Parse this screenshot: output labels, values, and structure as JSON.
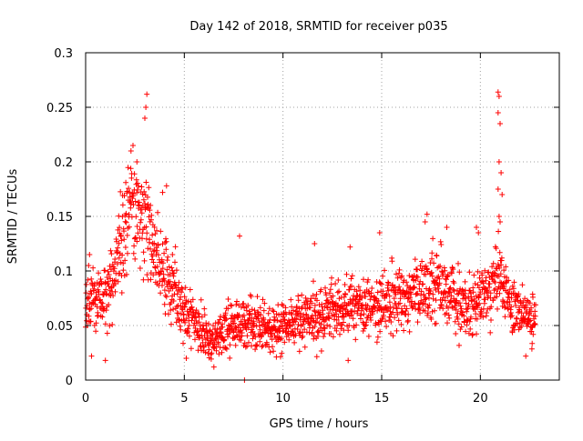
{
  "chart_data": {
    "type": "scatter",
    "title": "Day 142 of 2018, SRMTID for receiver p035",
    "xlabel": "GPS time / hours",
    "ylabel": "SRMTID / TECUs",
    "xlim": [
      0,
      24
    ],
    "ylim": [
      0,
      0.3
    ],
    "x_ticks": [
      0,
      5,
      10,
      15,
      20
    ],
    "x_tick_labels": [
      "0",
      "5",
      "10",
      "15",
      "20"
    ],
    "y_ticks": [
      0,
      0.05,
      0.1,
      0.15,
      0.2,
      0.25,
      0.3
    ],
    "y_tick_labels": [
      "0",
      "0.05",
      "0.1",
      "0.15",
      "0.2",
      "0.25",
      "0.3"
    ],
    "grid": true,
    "marker": "plus",
    "marker_color": "#ff0000",
    "sampling_interval_hours": 0.0125,
    "series": [
      {
        "name": "SRMTID",
        "envelope": {
          "description": "Approximate typical level of the dense point cloud vs time (hours, TECU)",
          "x": [
            0,
            0.5,
            1,
            1.5,
            2,
            2.5,
            3,
            3.5,
            4,
            4.5,
            5,
            5.5,
            6,
            6.5,
            7,
            7.5,
            8,
            8.5,
            9,
            9.5,
            10,
            11,
            12,
            13,
            14,
            15,
            16,
            17,
            17.5,
            18,
            19,
            19.5,
            20,
            20.5,
            21,
            21.5,
            22,
            22.5,
            22.8
          ],
          "y": [
            0.07,
            0.075,
            0.08,
            0.1,
            0.14,
            0.16,
            0.15,
            0.12,
            0.1,
            0.08,
            0.06,
            0.055,
            0.04,
            0.04,
            0.045,
            0.05,
            0.055,
            0.055,
            0.05,
            0.045,
            0.05,
            0.055,
            0.06,
            0.065,
            0.065,
            0.07,
            0.07,
            0.08,
            0.09,
            0.085,
            0.07,
            0.065,
            0.075,
            0.08,
            0.1,
            0.07,
            0.06,
            0.055,
            0.06
          ]
        },
        "outliers": [
          {
            "x": 3.1,
            "y": 0.262
          },
          {
            "x": 3.05,
            "y": 0.25
          },
          {
            "x": 3.0,
            "y": 0.24
          },
          {
            "x": 2.4,
            "y": 0.215
          },
          {
            "x": 2.6,
            "y": 0.2
          },
          {
            "x": 2.3,
            "y": 0.21
          },
          {
            "x": 20.9,
            "y": 0.264
          },
          {
            "x": 20.95,
            "y": 0.26
          },
          {
            "x": 20.9,
            "y": 0.245
          },
          {
            "x": 21.0,
            "y": 0.235
          },
          {
            "x": 20.95,
            "y": 0.2
          },
          {
            "x": 21.05,
            "y": 0.19
          },
          {
            "x": 20.9,
            "y": 0.175
          },
          {
            "x": 21.1,
            "y": 0.17
          },
          {
            "x": 20.95,
            "y": 0.15
          },
          {
            "x": 21.0,
            "y": 0.145
          },
          {
            "x": 7.8,
            "y": 0.132
          },
          {
            "x": 8.05,
            "y": 0.0
          },
          {
            "x": 17.3,
            "y": 0.152
          },
          {
            "x": 17.2,
            "y": 0.145
          },
          {
            "x": 18.3,
            "y": 0.14
          },
          {
            "x": 19.8,
            "y": 0.14
          },
          {
            "x": 19.9,
            "y": 0.135
          },
          {
            "x": 14.9,
            "y": 0.135
          },
          {
            "x": 0.2,
            "y": 0.115
          },
          {
            "x": 0.3,
            "y": 0.022
          },
          {
            "x": 1.0,
            "y": 0.018
          },
          {
            "x": 6.5,
            "y": 0.012
          },
          {
            "x": 5.1,
            "y": 0.02
          },
          {
            "x": 13.3,
            "y": 0.018
          },
          {
            "x": 22.3,
            "y": 0.022
          },
          {
            "x": 11.6,
            "y": 0.125
          },
          {
            "x": 13.4,
            "y": 0.122
          },
          {
            "x": 4.4,
            "y": 0.115
          },
          {
            "x": 4.1,
            "y": 0.178
          },
          {
            "x": 3.9,
            "y": 0.172
          }
        ]
      }
    ]
  }
}
